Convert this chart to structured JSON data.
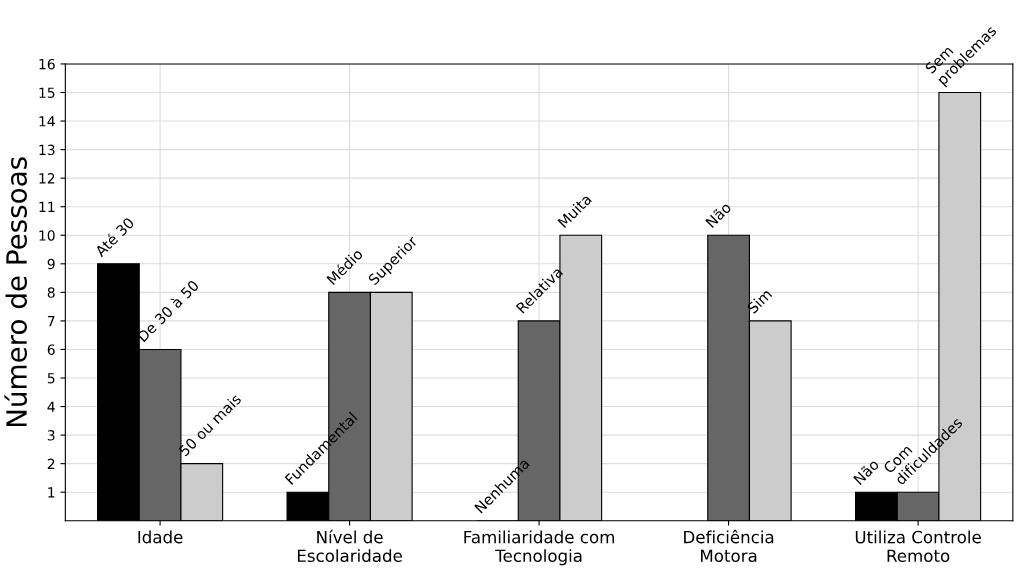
{
  "chart_data": {
    "type": "bar",
    "ylabel": "Número de Pessoas",
    "categories": [
      "Idade",
      "Nível de\nEscolaridade",
      "Familiaridade com\nTecnologia",
      "Deficiência\nMotora",
      "Utiliza Controle\nRemoto"
    ],
    "series": [
      {
        "color": "#000000",
        "values": [
          9,
          1,
          0,
          null,
          1
        ]
      },
      {
        "color": "#666666",
        "values": [
          6,
          8,
          7,
          10,
          1
        ]
      },
      {
        "color": "#cccccc",
        "values": [
          2,
          8,
          10,
          7,
          15
        ]
      }
    ],
    "annotations": [
      "Até 30",
      "De 30 à 50",
      "50 ou mais",
      "Fundamental",
      "Médio",
      "Superior",
      "Nenhuma",
      "Relativa",
      "Muita",
      "Não",
      "Sim",
      "Não",
      "Com\ndificuldades",
      "Sem\nproblemas"
    ],
    "ylim": [
      0,
      16
    ],
    "yticks": [
      1,
      2,
      3,
      4,
      5,
      6,
      7,
      8,
      9,
      10,
      11,
      12,
      13,
      14,
      15,
      16
    ],
    "grid": true
  }
}
